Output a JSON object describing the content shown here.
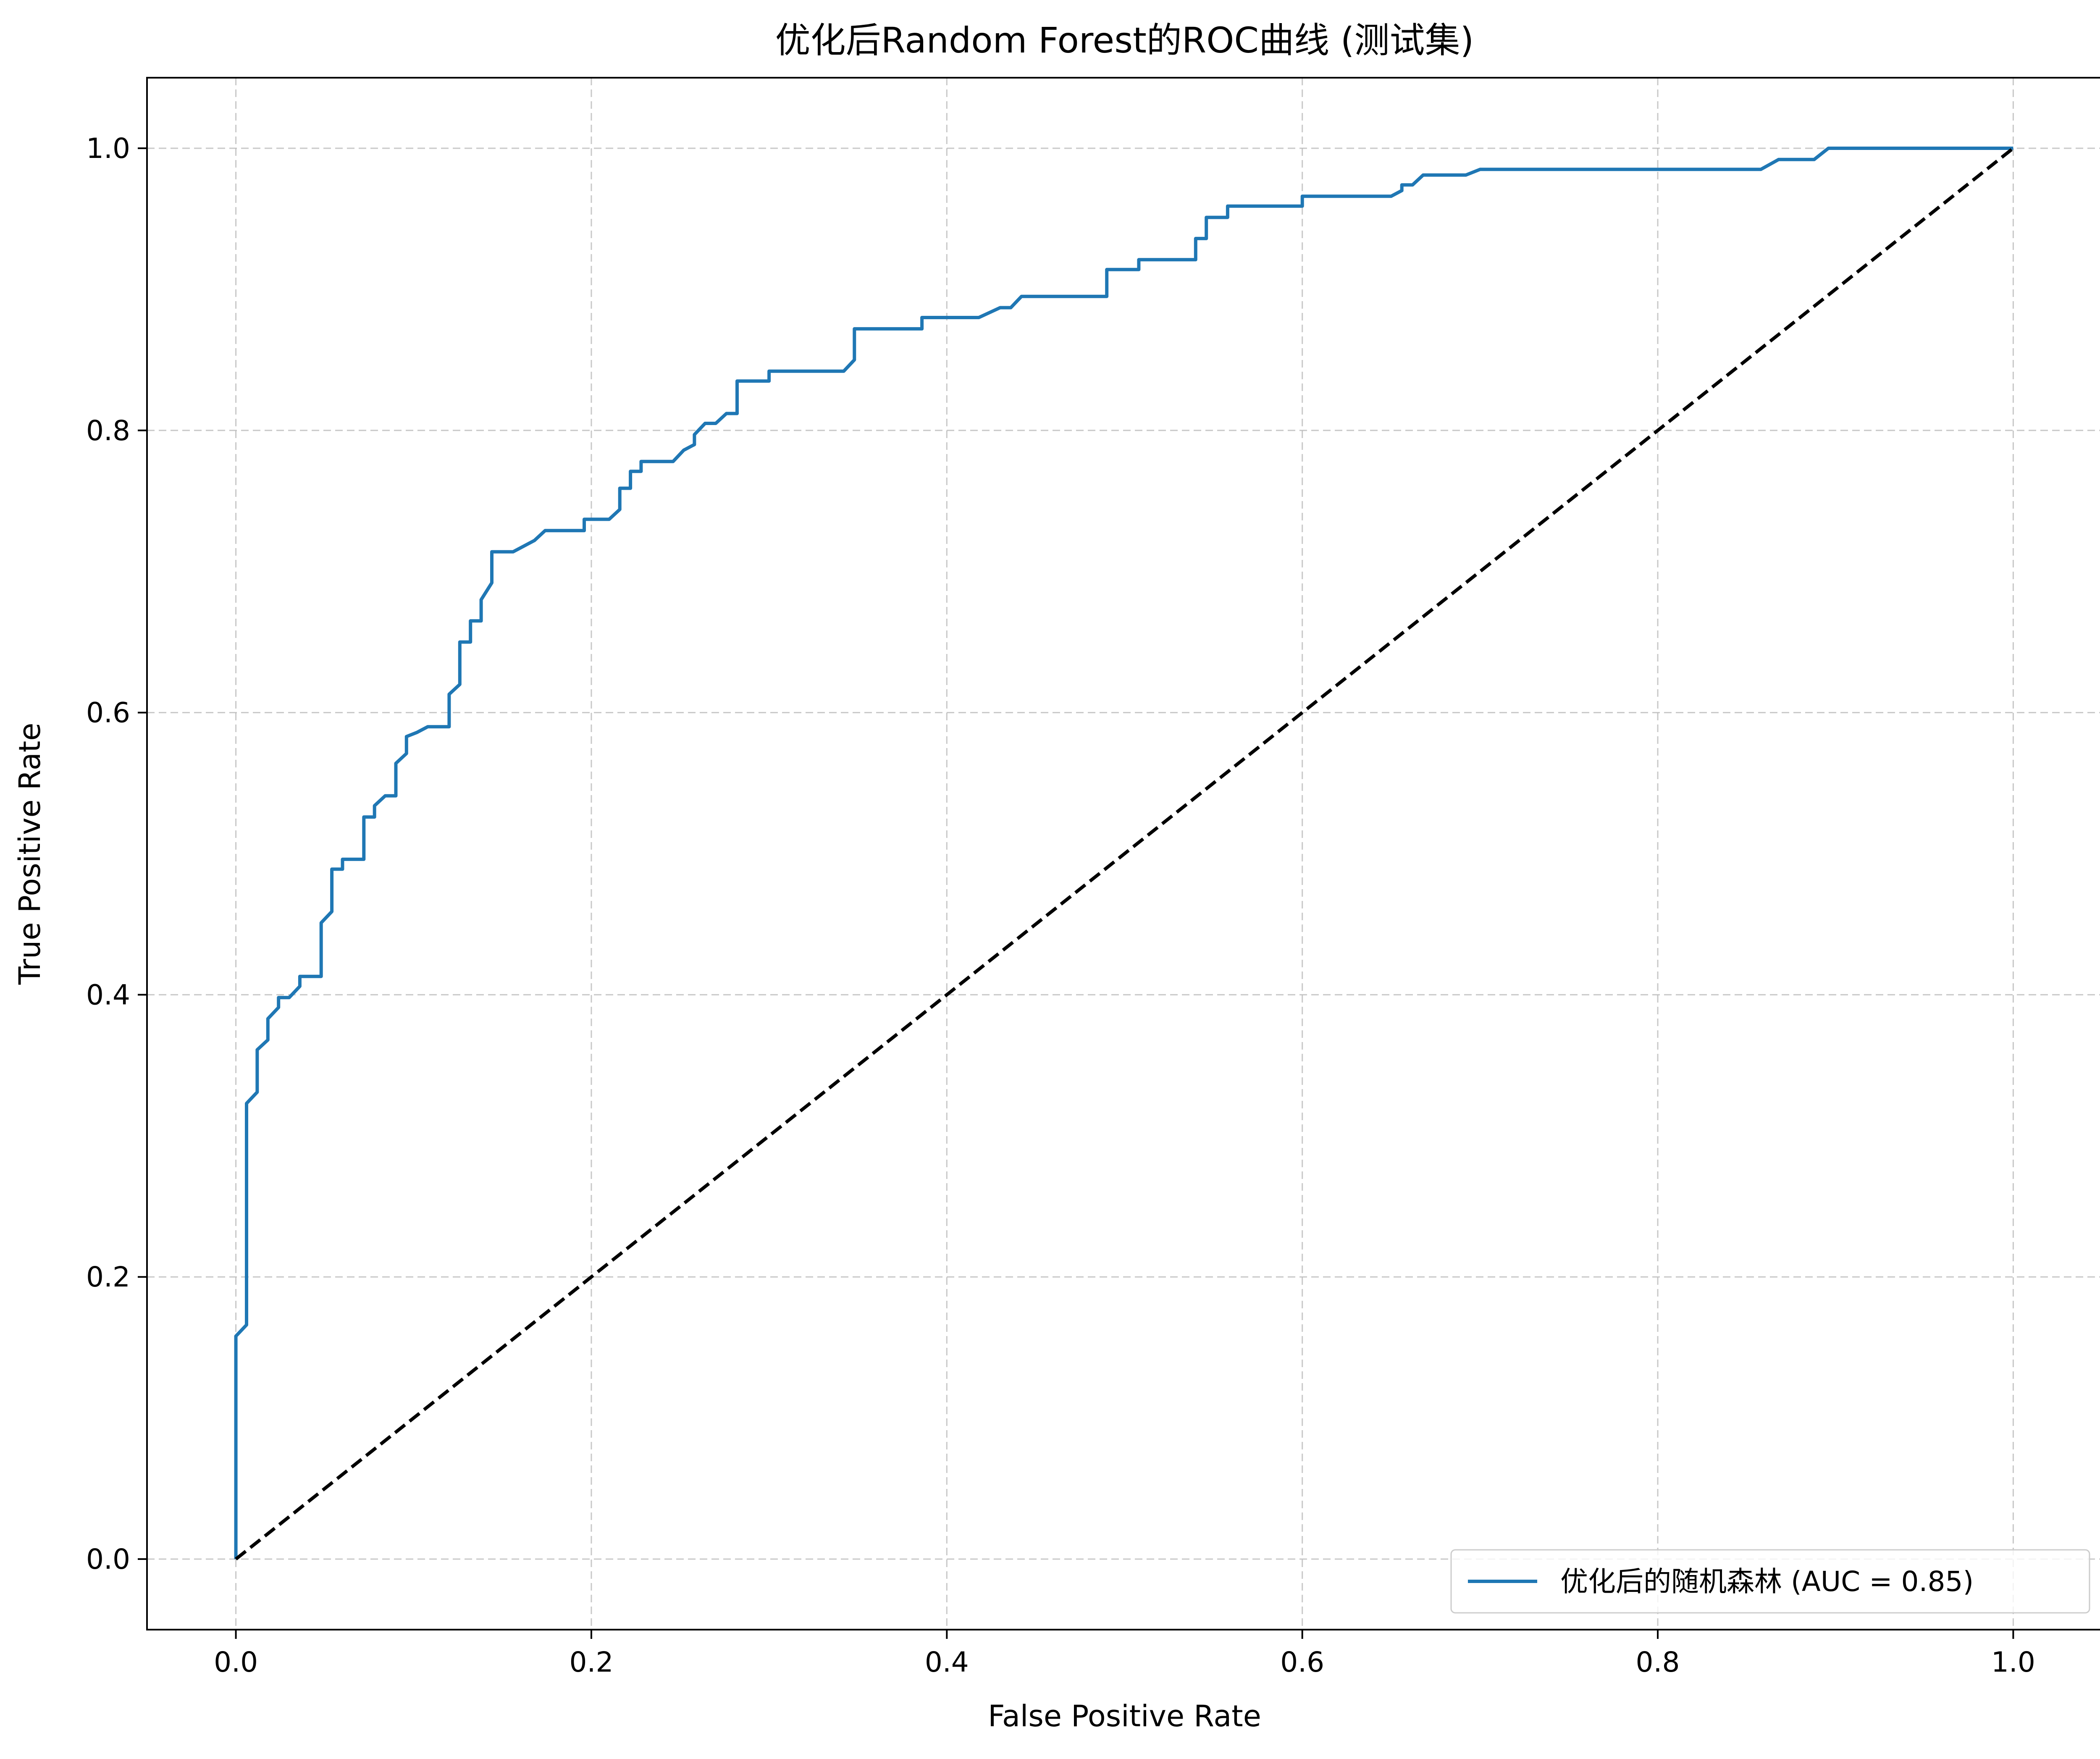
{
  "chart_data": {
    "type": "line",
    "title": "优化后Random Forest的ROC曲线 (测试集)",
    "xlabel": "False Positive Rate",
    "ylabel": "True Positive Rate",
    "xlim": [
      -0.05,
      1.05
    ],
    "ylim": [
      -0.05,
      1.05
    ],
    "x_ticks": [
      "0.0",
      "0.2",
      "0.4",
      "0.6",
      "0.8",
      "1.0"
    ],
    "y_ticks": [
      "0.0",
      "0.2",
      "0.4",
      "0.6",
      "0.8",
      "1.0"
    ],
    "grid": true,
    "legend_position": "lower right",
    "series": [
      {
        "name": "优化后的随机森林 (AUC = 0.85)",
        "color": "#1f77b4",
        "style": "solid",
        "x": [
          0.0,
          0.0,
          0.0,
          0.006,
          0.006,
          0.006,
          0.012,
          0.012,
          0.018,
          0.018,
          0.024,
          0.024,
          0.03,
          0.036,
          0.036,
          0.048,
          0.048,
          0.054,
          0.054,
          0.06,
          0.06,
          0.072,
          0.072,
          0.078,
          0.078,
          0.084,
          0.09,
          0.09,
          0.096,
          0.096,
          0.102,
          0.102,
          0.108,
          0.12,
          0.12,
          0.126,
          0.126,
          0.132,
          0.132,
          0.138,
          0.138,
          0.144,
          0.144,
          0.15,
          0.156,
          0.168,
          0.174,
          0.192,
          0.196,
          0.196,
          0.21,
          0.216,
          0.216,
          0.222,
          0.222,
          0.228,
          0.228,
          0.246,
          0.252,
          0.252,
          0.258,
          0.258,
          0.264,
          0.264,
          0.27,
          0.276,
          0.282,
          0.282,
          0.288,
          0.3,
          0.3,
          0.306,
          0.342,
          0.348,
          0.348,
          0.384,
          0.386,
          0.386,
          0.418,
          0.43,
          0.436,
          0.442,
          0.442,
          0.49,
          0.49,
          0.508,
          0.508,
          0.54,
          0.54,
          0.546,
          0.546,
          0.558,
          0.558,
          0.6,
          0.6,
          0.65,
          0.656,
          0.656,
          0.662,
          0.668,
          0.668,
          0.692,
          0.7,
          0.7,
          0.858,
          0.868,
          0.868,
          0.888,
          0.896,
          0.896,
          1.0
        ],
        "y": [
          0.0,
          0.158,
          0.158,
          0.166,
          0.323,
          0.323,
          0.331,
          0.361,
          0.368,
          0.383,
          0.391,
          0.398,
          0.398,
          0.406,
          0.413,
          0.413,
          0.451,
          0.459,
          0.489,
          0.489,
          0.496,
          0.496,
          0.526,
          0.526,
          0.534,
          0.541,
          0.541,
          0.564,
          0.571,
          0.583,
          0.586,
          0.586,
          0.59,
          0.59,
          0.613,
          0.62,
          0.65,
          0.65,
          0.665,
          0.665,
          0.68,
          0.692,
          0.714,
          0.714,
          0.714,
          0.722,
          0.729,
          0.729,
          0.729,
          0.737,
          0.737,
          0.744,
          0.759,
          0.759,
          0.771,
          0.771,
          0.778,
          0.778,
          0.786,
          0.786,
          0.79,
          0.797,
          0.805,
          0.805,
          0.805,
          0.812,
          0.812,
          0.835,
          0.835,
          0.835,
          0.842,
          0.842,
          0.842,
          0.85,
          0.872,
          0.872,
          0.872,
          0.88,
          0.88,
          0.887,
          0.887,
          0.895,
          0.895,
          0.895,
          0.914,
          0.914,
          0.921,
          0.921,
          0.936,
          0.936,
          0.951,
          0.951,
          0.959,
          0.959,
          0.966,
          0.966,
          0.97,
          0.974,
          0.974,
          0.981,
          0.981,
          0.981,
          0.985,
          0.985,
          0.985,
          0.992,
          0.992,
          0.992,
          1.0,
          1.0,
          1.0
        ]
      },
      {
        "name": "",
        "color": "#000000",
        "style": "dashed",
        "x": [
          0,
          1
        ],
        "y": [
          0,
          1
        ]
      }
    ]
  }
}
